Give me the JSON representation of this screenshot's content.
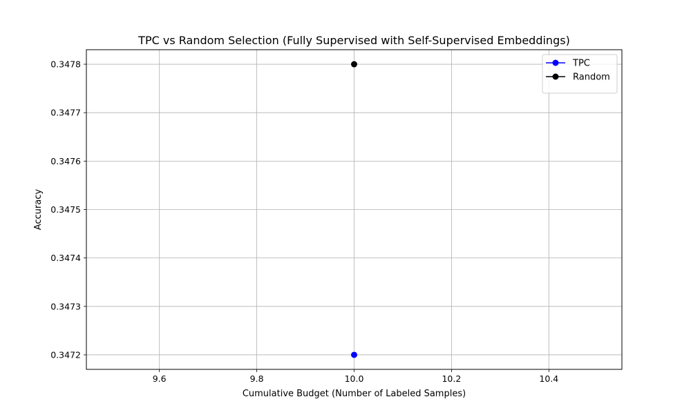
{
  "chart_data": {
    "type": "line",
    "title": "TPC vs Random Selection (Fully Supervised with Self-Supervised Embeddings)",
    "xlabel": "Cumulative Budget (Number of Labeled Samples)",
    "ylabel": "Accuracy",
    "xlim": [
      9.45,
      10.55
    ],
    "ylim": [
      0.34717,
      0.34783
    ],
    "x_ticks": [
      9.6,
      9.8,
      10.0,
      10.2,
      10.4
    ],
    "x_tick_labels": [
      "9.6",
      "9.8",
      "10.0",
      "10.2",
      "10.4"
    ],
    "y_ticks": [
      0.3472,
      0.3473,
      0.3474,
      0.3475,
      0.3476,
      0.3477,
      0.3478
    ],
    "y_tick_labels": [
      "0.3472",
      "0.3473",
      "0.3474",
      "0.3475",
      "0.3476",
      "0.3477",
      "0.3478"
    ],
    "grid": true,
    "legend_position": "top-right",
    "series": [
      {
        "name": "TPC",
        "color": "#0000ff",
        "marker": "circle",
        "points": [
          {
            "x": 10,
            "y": 0.3472
          }
        ]
      },
      {
        "name": "Random",
        "color": "#000000",
        "marker": "circle",
        "points": [
          {
            "x": 10,
            "y": 0.3478
          }
        ]
      }
    ]
  }
}
